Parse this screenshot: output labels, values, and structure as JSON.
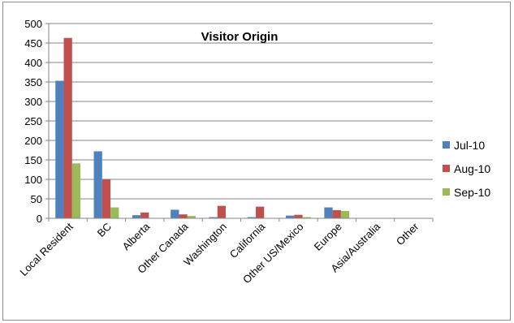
{
  "chart_data": {
    "type": "bar",
    "title": "Visitor Origin",
    "xlabel": "",
    "ylabel": "",
    "ylim": [
      0,
      500
    ],
    "yticks": [
      0,
      50,
      100,
      150,
      200,
      250,
      300,
      350,
      400,
      450,
      500
    ],
    "grid": true,
    "legend_position": "right",
    "categories": [
      "Local Resident",
      "BC",
      "Alberta",
      "Other Canada",
      "Washington",
      "California",
      "Other US/Mexico",
      "Europe",
      "Asia/Australia",
      "Other"
    ],
    "series": [
      {
        "name": "Jul-10",
        "color": "#4f81bd",
        "values": [
          353,
          172,
          8,
          22,
          3,
          3,
          7,
          28,
          0,
          0
        ]
      },
      {
        "name": "Aug-10",
        "color": "#c0504d",
        "values": [
          463,
          100,
          15,
          10,
          32,
          30,
          9,
          21,
          0,
          0
        ]
      },
      {
        "name": "Sep-10",
        "color": "#9bbb59",
        "values": [
          141,
          28,
          0,
          6,
          0,
          0,
          3,
          19,
          0,
          0
        ]
      }
    ]
  }
}
